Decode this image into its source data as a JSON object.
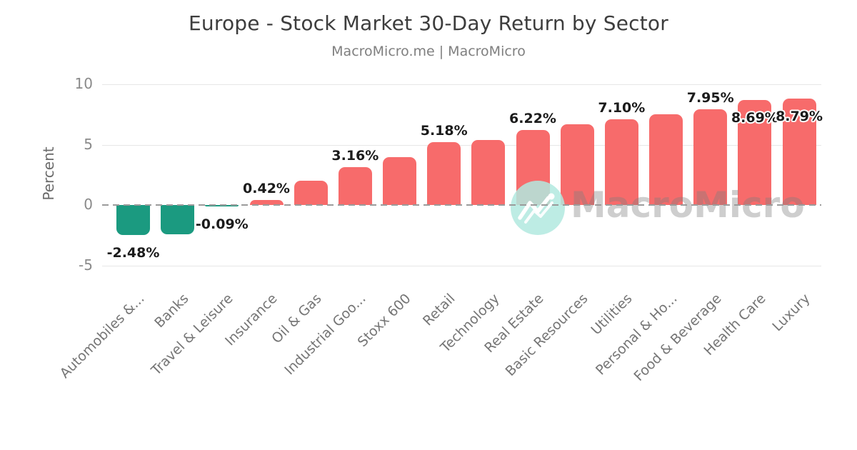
{
  "title": "Europe - Stock Market 30-Day Return by Sector",
  "subtitle": "MacroMicro.me | MacroMicro",
  "watermark": {
    "text": "MacroMicro",
    "icon": "macromicro-line-chart-logo"
  },
  "y_axis": {
    "label": "Percent",
    "tick_labels": [
      "10",
      "5",
      "0",
      "-5"
    ]
  },
  "colors": {
    "background": "#ffffff",
    "positive_bar": "#f76b6b",
    "negative_bar": "#1b9a80",
    "gridline": "#e7e7e7",
    "zero_line": "#9b9b9b",
    "title_text": "#3d3d3d",
    "subtitle_text": "#7f7f7f",
    "axis_text": "#8a8a8a",
    "x_label_text": "#757575",
    "data_label_text": "#1b1b1b",
    "watermark_circle": "rgba(177,233,223,0.85)",
    "watermark_text": "rgba(125,125,125,0.38)"
  },
  "chart_data": {
    "type": "bar",
    "title": "Europe - Stock Market 30-Day Return by Sector",
    "subtitle": "MacroMicro.me | MacroMicro",
    "xlabel": "",
    "ylabel": "Percent",
    "ylim": [
      -5,
      10
    ],
    "yticks": [
      10,
      5,
      0,
      -5
    ],
    "grid": "horizontal",
    "legend": "none",
    "zero_line_style": "dashed",
    "categories": [
      "Automobiles &...",
      "Banks",
      "Travel & Leisure",
      "Insurance",
      "Oil & Gas",
      "Industrial Goo...",
      "Stoxx 600",
      "Retail",
      "Technology",
      "Real Estate",
      "Basic Resources",
      "Utilities",
      "Personal & Ho...",
      "Food & Beverage",
      "Health Care",
      "Luxury"
    ],
    "values": [
      -2.48,
      -2.43,
      -0.09,
      0.42,
      2.01,
      3.16,
      3.96,
      5.18,
      5.38,
      6.22,
      6.67,
      7.1,
      7.51,
      7.95,
      8.69,
      8.79
    ],
    "data_labels": [
      "-2.48%",
      null,
      "-0.09%",
      "0.42%",
      null,
      "3.16%",
      null,
      "5.18%",
      null,
      "6.22%",
      null,
      "7.10%",
      null,
      "7.95%",
      "8.69%",
      "8.79%"
    ]
  }
}
